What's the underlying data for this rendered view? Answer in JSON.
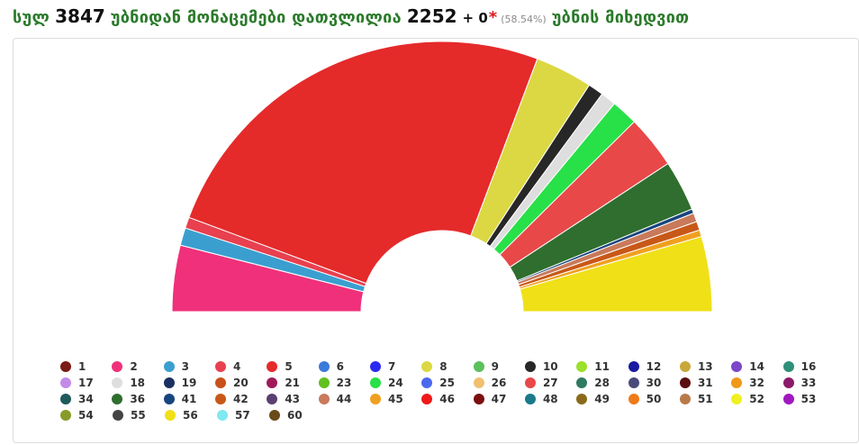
{
  "header": {
    "w1": "სულ",
    "total": "3847",
    "w2": "უბნიდან მონაცემები დათვლილია",
    "counted": "2252",
    "plus": "+ 0",
    "star": "*",
    "percent": "(58.54%)",
    "w3": "უბნის მიხედვით"
  },
  "chart_data": {
    "type": "pie",
    "variant": "half-donut",
    "categories": [
      "1",
      "2",
      "3",
      "4",
      "5",
      "6",
      "7",
      "8",
      "9",
      "10",
      "11",
      "12",
      "13",
      "14",
      "16",
      "17",
      "18",
      "19",
      "20",
      "21",
      "23",
      "24",
      "25",
      "26",
      "27",
      "28",
      "30",
      "31",
      "32",
      "33",
      "34",
      "36",
      "41",
      "42",
      "43",
      "44",
      "45",
      "46",
      "47",
      "48",
      "49",
      "50",
      "51",
      "52",
      "53",
      "54",
      "55",
      "56",
      "57",
      "60"
    ],
    "colors": [
      "#7a1b14",
      "#f0307a",
      "#3a9fcf",
      "#e8404f",
      "#e52a2a",
      "#3a7ad8",
      "#2b2bf0",
      "#dcd843",
      "#5cc05c",
      "#272727",
      "#9be02c",
      "#1a1aa0",
      "#c8a838",
      "#7a48c8",
      "#2f8f78",
      "#c48ae8",
      "#dedede",
      "#1a3060",
      "#c8501a",
      "#a01a5a",
      "#60c020",
      "#28e048",
      "#4a68f0",
      "#f0c070",
      "#e84848",
      "#2f7a60",
      "#4a4a7a",
      "#5a1010",
      "#f09818",
      "#8a1a6a",
      "#1f5a5a",
      "#2f6e2e",
      "#17457e",
      "#c85818",
      "#5a4070",
      "#c87a5a",
      "#f0a020",
      "#f01818",
      "#7a1010",
      "#1a7a8a",
      "#8a6a1a",
      "#f07a18",
      "#b87a4a",
      "#f0f020",
      "#a018c0",
      "#8a9a28",
      "#444444",
      "#f0e018",
      "#80e8f0",
      "#6a4a1a"
    ],
    "values": [
      0.1,
      3.0,
      0.8,
      0.5,
      19.0,
      0.1,
      0.2,
      2.6,
      0.1,
      0.7,
      0.1,
      0.3,
      0.1,
      0.2,
      0.1,
      0.1,
      0.7,
      0.2,
      0.1,
      0.1,
      0.2,
      1.2,
      0.1,
      0.1,
      2.4,
      0.1,
      0.1,
      0.1,
      0.1,
      0.1,
      0.1,
      2.3,
      0.2,
      0.4,
      0.1,
      0.4,
      0.3,
      0.1,
      0.1,
      0.1,
      0.1,
      0.1,
      0.1,
      0.1,
      0.1,
      0.1,
      0.1,
      3.4,
      0.1,
      0.1
    ],
    "chart_order": [
      "2",
      "3",
      "4",
      "5",
      "8",
      "10",
      "18",
      "24",
      "27",
      "36",
      "41",
      "44",
      "42",
      "45",
      "56"
    ],
    "legend_position": "bottom"
  }
}
